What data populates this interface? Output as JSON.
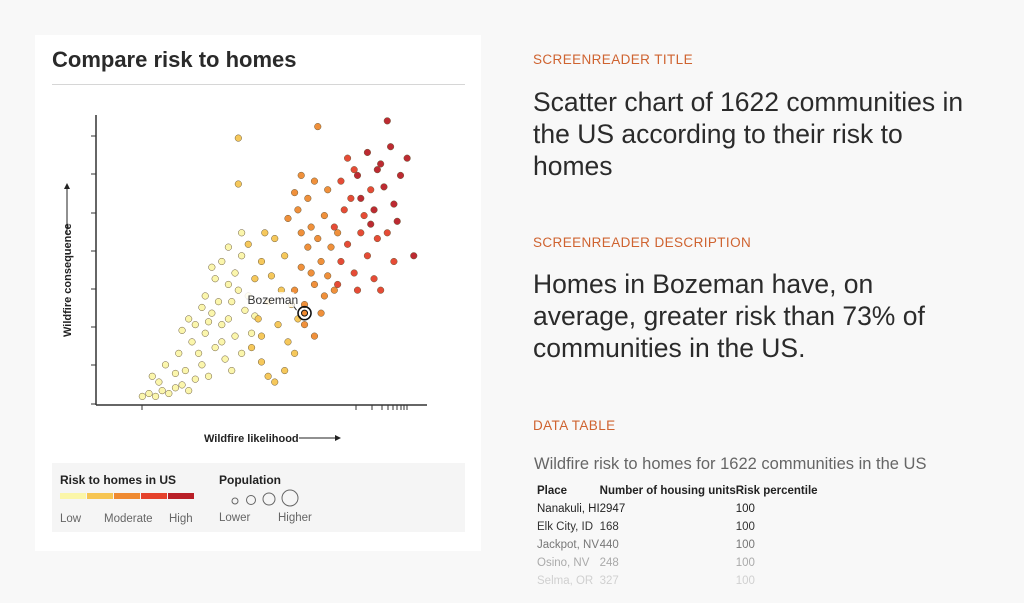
{
  "card": {
    "title": "Compare risk to homes"
  },
  "chart_data": {
    "type": "scatter",
    "xlabel": "Wildfire likelihood",
    "ylabel": "Wildfire consequence",
    "x_scale": "log",
    "tick_labels": "none",
    "grid": false,
    "count": 1622,
    "risk_colors": [
      "#fbf6a8",
      "#f6c552",
      "#ef8a30",
      "#e5412b",
      "#b91f27"
    ],
    "highlight": {
      "label": "Bozeman",
      "x": 63,
      "y": 32,
      "risk": 2
    },
    "points": [
      [
        14,
        3,
        0
      ],
      [
        16,
        4,
        0
      ],
      [
        18,
        3,
        0
      ],
      [
        20,
        5,
        0
      ],
      [
        22,
        4,
        0
      ],
      [
        24,
        6,
        0
      ],
      [
        19,
        8,
        0
      ],
      [
        26,
        7,
        0
      ],
      [
        28,
        5,
        0
      ],
      [
        30,
        9,
        0
      ],
      [
        27,
        12,
        0
      ],
      [
        24,
        11,
        0
      ],
      [
        32,
        14,
        0
      ],
      [
        34,
        10,
        0
      ],
      [
        31,
        18,
        0
      ],
      [
        29,
        22,
        0
      ],
      [
        33,
        25,
        0
      ],
      [
        36,
        20,
        0
      ],
      [
        38,
        28,
        0
      ],
      [
        35,
        32,
        0
      ],
      [
        37,
        36,
        0
      ],
      [
        40,
        30,
        0
      ],
      [
        42,
        24,
        0
      ],
      [
        39,
        16,
        0
      ],
      [
        41,
        12,
        0
      ],
      [
        44,
        18,
        0
      ],
      [
        45,
        33,
        0
      ],
      [
        43,
        40,
        0
      ],
      [
        40,
        42,
        0
      ],
      [
        46,
        38,
        0
      ],
      [
        30,
        28,
        0
      ],
      [
        33,
        38,
        0
      ],
      [
        36,
        44,
        0
      ],
      [
        42,
        46,
        0
      ],
      [
        38,
        50,
        0
      ],
      [
        44,
        52,
        0
      ],
      [
        35,
        48,
        0
      ],
      [
        28,
        30,
        0
      ],
      [
        26,
        26,
        0
      ],
      [
        47,
        25,
        0
      ],
      [
        44,
        60,
        0
      ],
      [
        40,
        55,
        0
      ],
      [
        32,
        34,
        0
      ],
      [
        21,
        14,
        0
      ],
      [
        17,
        10,
        0
      ],
      [
        25,
        18,
        0
      ],
      [
        48,
        31,
        0
      ],
      [
        34,
        29,
        0
      ],
      [
        38,
        22,
        0
      ],
      [
        41,
        36,
        0
      ],
      [
        47,
        20,
        1
      ],
      [
        50,
        15,
        1
      ],
      [
        52,
        10,
        1
      ],
      [
        54,
        8,
        1
      ],
      [
        49,
        30,
        1
      ],
      [
        52,
        36,
        1
      ],
      [
        55,
        28,
        1
      ],
      [
        53,
        45,
        1
      ],
      [
        50,
        50,
        1
      ],
      [
        56,
        40,
        1
      ],
      [
        58,
        22,
        1
      ],
      [
        60,
        18,
        1
      ],
      [
        48,
        44,
        1
      ],
      [
        57,
        52,
        1
      ],
      [
        59,
        35,
        1
      ],
      [
        46,
        56,
        1
      ],
      [
        54,
        58,
        1
      ],
      [
        51,
        60,
        1
      ],
      [
        61,
        30,
        1
      ],
      [
        57,
        12,
        1
      ],
      [
        43,
        93,
        1
      ],
      [
        43,
        77,
        1
      ],
      [
        50,
        24,
        1
      ],
      [
        60,
        40,
        2
      ],
      [
        62,
        48,
        2
      ],
      [
        64,
        55,
        2
      ],
      [
        66,
        42,
        2
      ],
      [
        63,
        35,
        2
      ],
      [
        68,
        50,
        2
      ],
      [
        65,
        62,
        2
      ],
      [
        67,
        58,
        2
      ],
      [
        70,
        45,
        2
      ],
      [
        62,
        60,
        2
      ],
      [
        61,
        68,
        2
      ],
      [
        64,
        72,
        2
      ],
      [
        60,
        74,
        2
      ],
      [
        66,
        78,
        2
      ],
      [
        69,
        66,
        2
      ],
      [
        71,
        55,
        2
      ],
      [
        58,
        65,
        2
      ],
      [
        63,
        28,
        2
      ],
      [
        68,
        32,
        2
      ],
      [
        72,
        40,
        2
      ],
      [
        66,
        24,
        2
      ],
      [
        73,
        60,
        2
      ],
      [
        70,
        75,
        2
      ],
      [
        62,
        80,
        2
      ],
      [
        67,
        97,
        2
      ],
      [
        65,
        46,
        2
      ],
      [
        69,
        38,
        2
      ],
      [
        72,
        62,
        3
      ],
      [
        74,
        50,
        3
      ],
      [
        76,
        56,
        3
      ],
      [
        78,
        46,
        3
      ],
      [
        80,
        60,
        3
      ],
      [
        75,
        68,
        3
      ],
      [
        82,
        52,
        3
      ],
      [
        79,
        40,
        3
      ],
      [
        84,
        44,
        3
      ],
      [
        77,
        72,
        3
      ],
      [
        81,
        66,
        3
      ],
      [
        85,
        58,
        3
      ],
      [
        83,
        75,
        3
      ],
      [
        74,
        78,
        3
      ],
      [
        78,
        82,
        3
      ],
      [
        88,
        60,
        3
      ],
      [
        90,
        50,
        3
      ],
      [
        86,
        40,
        3
      ],
      [
        76,
        86,
        3
      ],
      [
        73,
        42,
        3
      ],
      [
        80,
        72,
        4
      ],
      [
        84,
        68,
        4
      ],
      [
        87,
        76,
        4
      ],
      [
        90,
        70,
        4
      ],
      [
        92,
        80,
        4
      ],
      [
        86,
        84,
        4
      ],
      [
        82,
        88,
        4
      ],
      [
        89,
        90,
        4
      ],
      [
        94,
        86,
        4
      ],
      [
        91,
        64,
        4
      ],
      [
        85,
        82,
        4
      ],
      [
        96,
        52,
        4
      ],
      [
        88,
        99,
        4
      ],
      [
        79,
        80,
        4
      ],
      [
        83,
        63,
        4
      ]
    ]
  },
  "legend": {
    "risk_title": "Risk to homes in US",
    "risk_low": "Low",
    "risk_mid": "Moderate",
    "risk_high": "High",
    "pop_title": "Population",
    "pop_low": "Lower",
    "pop_high": "Higher"
  },
  "right": {
    "title_label": "SCREENREADER TITLE",
    "title_text": "Scatter chart of 1622 communities in the US according to their risk to homes",
    "desc_label": "SCREENREADER DESCRIPTION",
    "desc_text": "Homes in Bozeman have, on average, greater risk than 73% of communities in the US.",
    "table_label": "DATA TABLE",
    "table_caption": "Wildfire risk to homes for 1622 communities in the US",
    "columns": [
      "Place",
      "Number of housing units",
      "Risk percentile"
    ],
    "rows": [
      [
        "Nanakuli, HI",
        "2947",
        "100"
      ],
      [
        "Elk City, ID",
        "168",
        "100"
      ],
      [
        "Jackpot, NV",
        "440",
        "100"
      ],
      [
        "Osino, NV",
        "248",
        "100"
      ],
      [
        "Selma, OR",
        "327",
        "100"
      ]
    ]
  }
}
